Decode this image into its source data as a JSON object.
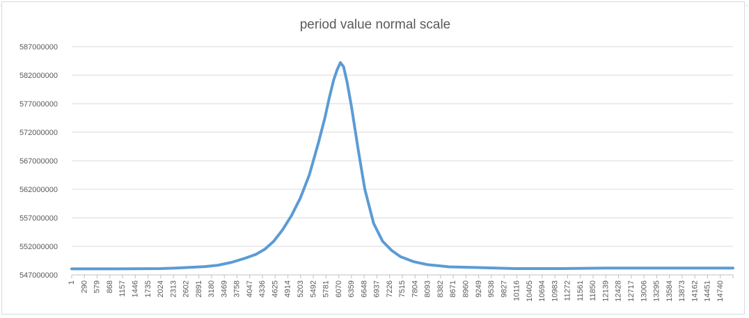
{
  "chart_data": {
    "type": "line",
    "title": "period value normal scale",
    "xlabel": "",
    "ylabel": "",
    "ylim": [
      547000000,
      587000000
    ],
    "y_ticks": [
      "587000000",
      "582000000",
      "577000000",
      "572000000",
      "567000000",
      "562000000",
      "557000000",
      "552000000",
      "547000000"
    ],
    "x_tick_labels": [
      "1",
      "290",
      "579",
      "868",
      "1157",
      "1446",
      "1735",
      "2024",
      "2313",
      "2602",
      "2891",
      "3180",
      "3469",
      "3758",
      "4047",
      "4336",
      "4625",
      "4914",
      "5203",
      "5492",
      "5781",
      "6070",
      "6359",
      "6648",
      "6937",
      "7226",
      "7515",
      "7804",
      "8093",
      "8382",
      "8671",
      "8960",
      "9249",
      "9538",
      "9827",
      "10116",
      "10405",
      "10694",
      "10983",
      "11272",
      "11561",
      "11850",
      "12139",
      "12428",
      "12717",
      "13006",
      "13295",
      "13584",
      "13873",
      "14162",
      "14451",
      "14740"
    ],
    "xlim": [
      1,
      14889
    ],
    "grid": true,
    "legend": "none",
    "series": [
      {
        "color": "#5b9bd5",
        "x": [
          1,
          1000,
          2000,
          2500,
          3000,
          3300,
          3600,
          3900,
          4150,
          4350,
          4550,
          4750,
          4950,
          5150,
          5350,
          5550,
          5700,
          5800,
          5900,
          5980,
          6050,
          6120,
          6200,
          6300,
          6450,
          6600,
          6800,
          7000,
          7200,
          7400,
          7700,
          8000,
          8500,
          9000,
          10000,
          11000,
          12000,
          13000,
          14000,
          14889
        ],
        "y": [
          548050000,
          548050000,
          548100000,
          548250000,
          548450000,
          548700000,
          549200000,
          549900000,
          550600000,
          551500000,
          552900000,
          554900000,
          557400000,
          560500000,
          564500000,
          570000000,
          574500000,
          578000000,
          581200000,
          583000000,
          584200000,
          583500000,
          580800000,
          576500000,
          569000000,
          562000000,
          556000000,
          552900000,
          551300000,
          550200000,
          549300000,
          548800000,
          548400000,
          548300000,
          548100000,
          548100000,
          548200000,
          548200000,
          548200000,
          548200000
        ]
      }
    ]
  }
}
